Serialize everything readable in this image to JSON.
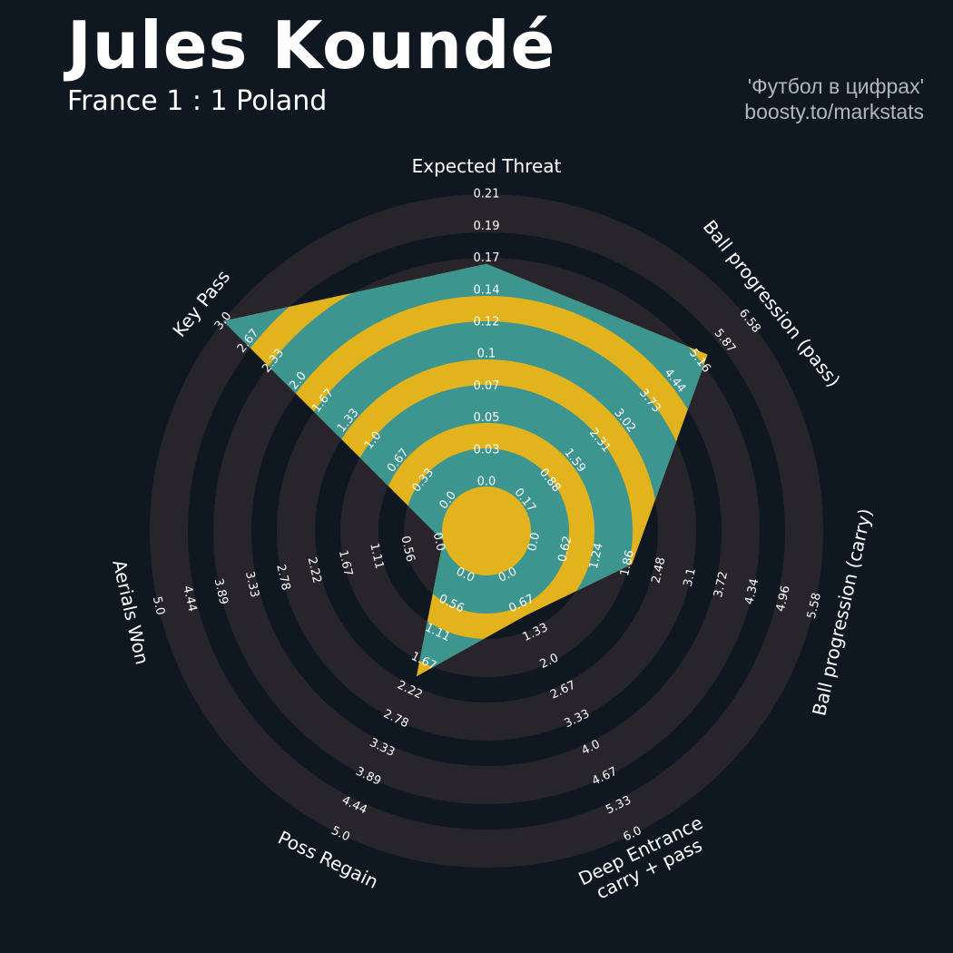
{
  "header": {
    "title": "Jules Koundé",
    "subtitle": "France 1 : 1 Poland",
    "credit_line1": "'Футбол в цифрах'",
    "credit_line2": "boosty.to/markstats"
  },
  "colors": {
    "background": "#0f1820",
    "ring": "#28242b",
    "polygon": "#3d9590",
    "polygon_alt": "#e2b31c"
  },
  "chart_data": {
    "type": "radar",
    "params": [
      {
        "label": [
          "Expected Threat"
        ],
        "min": 0.0,
        "max": 0.21,
        "value": 0.16,
        "ticks": [
          "0.0",
          "0.03",
          "0.05",
          "0.07",
          "0.1",
          "0.12",
          "0.14",
          "0.17",
          "0.19",
          "0.21"
        ]
      },
      {
        "label": [
          "Ball progression (pass)"
        ],
        "min": 0.17,
        "max": 6.58,
        "value": 5.4,
        "ticks": [
          "0.17",
          "0.88",
          "1.59",
          "2.31",
          "3.02",
          "3.73",
          "4.44",
          "5.16",
          "5.87",
          "6.58"
        ]
      },
      {
        "label": [
          "Ball progression (carry)"
        ],
        "min": 0.0,
        "max": 5.58,
        "value": 2.0,
        "ticks": [
          "0.0",
          "0.62",
          "1.24",
          "1.86",
          "2.48",
          "3.1",
          "3.72",
          "4.34",
          "4.96",
          "5.58"
        ]
      },
      {
        "label": [
          "Deep Entrance",
          "carry + pass"
        ],
        "min": 0.0,
        "max": 6.0,
        "value": 1.0,
        "ticks": [
          "0.0",
          "0.67",
          "1.33",
          "2.0",
          "2.67",
          "3.33",
          "4.0",
          "4.67",
          "5.33",
          "6.0"
        ]
      },
      {
        "label": [
          "Poss Regain"
        ],
        "min": 0.0,
        "max": 5.0,
        "value": 2.0,
        "ticks": [
          "0.0",
          "0.56",
          "1.11",
          "1.67",
          "2.22",
          "2.78",
          "3.33",
          "3.89",
          "4.44",
          "5.0"
        ]
      },
      {
        "label": [
          "Aerials Won"
        ],
        "min": 0.0,
        "max": 5.0,
        "value": 0.0,
        "ticks": [
          "0.0",
          "0.56",
          "1.11",
          "1.67",
          "2.22",
          "2.78",
          "3.33",
          "3.89",
          "4.44",
          "5.0"
        ]
      },
      {
        "label": [
          "Key Pass"
        ],
        "min": 0.0,
        "max": 3.0,
        "value": 3.0,
        "ticks": [
          "0.0",
          "0.33",
          "0.67",
          "1.0",
          "1.33",
          "1.67",
          "2.0",
          "2.33",
          "2.67",
          "3.0"
        ]
      }
    ]
  }
}
